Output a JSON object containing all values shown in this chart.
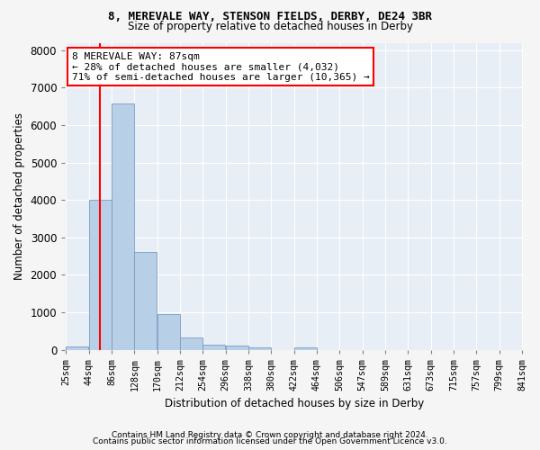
{
  "title1": "8, MEREVALE WAY, STENSON FIELDS, DERBY, DE24 3BR",
  "title2": "Size of property relative to detached houses in Derby",
  "xlabel": "Distribution of detached houses by size in Derby",
  "ylabel": "Number of detached properties",
  "bin_edges": [
    25,
    67,
    109,
    151,
    193,
    235,
    277,
    319,
    361,
    403,
    445,
    487,
    529,
    571,
    613,
    655,
    697,
    739,
    781,
    823,
    865
  ],
  "bin_labels": [
    "25sqm",
    "44sqm",
    "86sqm",
    "128sqm",
    "170sqm",
    "212sqm",
    "254sqm",
    "296sqm",
    "338sqm",
    "380sqm",
    "422sqm",
    "464sqm",
    "506sqm",
    "547sqm",
    "589sqm",
    "631sqm",
    "673sqm",
    "715sqm",
    "757sqm",
    "799sqm",
    "841sqm"
  ],
  "bin_counts": [
    80,
    4000,
    6580,
    2620,
    960,
    320,
    125,
    110,
    65,
    0,
    65,
    0,
    0,
    0,
    0,
    0,
    0,
    0,
    0,
    0
  ],
  "bar_color": "#b8cfe8",
  "bar_edge_color": "#7a9cc0",
  "property_line_x": 87,
  "property_line_color": "red",
  "annotation_text": "8 MEREVALE WAY: 87sqm\n← 28% of detached houses are smaller (4,032)\n71% of semi-detached houses are larger (10,365) →",
  "annotation_box_color": "white",
  "annotation_box_edge_color": "red",
  "ylim": [
    0,
    8200
  ],
  "yticks": [
    0,
    1000,
    2000,
    3000,
    4000,
    5000,
    6000,
    7000,
    8000
  ],
  "fig_bg": "#f5f5f5",
  "plot_bg": "#e8eef5",
  "footer1": "Contains HM Land Registry data © Crown copyright and database right 2024.",
  "footer2": "Contains public sector information licensed under the Open Government Licence v3.0."
}
